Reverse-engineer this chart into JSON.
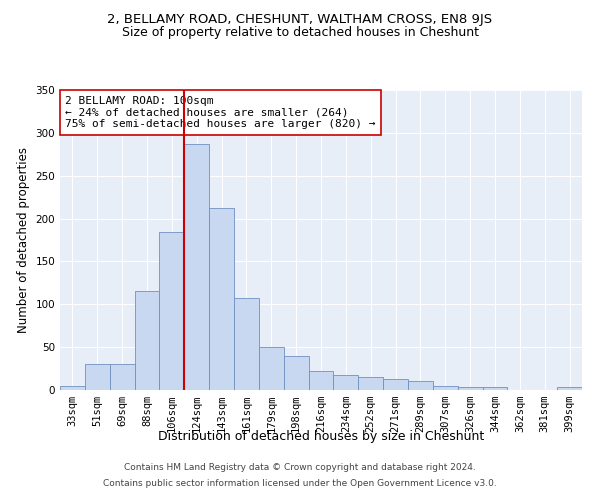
{
  "title": "2, BELLAMY ROAD, CHESHUNT, WALTHAM CROSS, EN8 9JS",
  "subtitle": "Size of property relative to detached houses in Cheshunt",
  "xlabel": "Distribution of detached houses by size in Cheshunt",
  "ylabel": "Number of detached properties",
  "categories": [
    "33sqm",
    "51sqm",
    "69sqm",
    "88sqm",
    "106sqm",
    "124sqm",
    "143sqm",
    "161sqm",
    "179sqm",
    "198sqm",
    "216sqm",
    "234sqm",
    "252sqm",
    "271sqm",
    "289sqm",
    "307sqm",
    "326sqm",
    "344sqm",
    "362sqm",
    "381sqm",
    "399sqm"
  ],
  "values": [
    5,
    30,
    30,
    115,
    184,
    287,
    212,
    107,
    50,
    40,
    22,
    18,
    15,
    13,
    10,
    5,
    3,
    3,
    0,
    0,
    3
  ],
  "bar_color": "#c8d8f0",
  "bar_edge_color": "#7090c0",
  "vline_x_index": 4,
  "vline_color": "#cc0000",
  "annotation_text": "2 BELLAMY ROAD: 100sqm\n← 24% of detached houses are smaller (264)\n75% of semi-detached houses are larger (820) →",
  "annotation_box_color": "#ffffff",
  "annotation_box_edge_color": "#cc0000",
  "ylim": [
    0,
    350
  ],
  "yticks": [
    0,
    50,
    100,
    150,
    200,
    250,
    300,
    350
  ],
  "bg_color": "#e8eef8",
  "grid_color": "#ffffff",
  "footer1": "Contains HM Land Registry data © Crown copyright and database right 2024.",
  "footer2": "Contains public sector information licensed under the Open Government Licence v3.0.",
  "title_fontsize": 9.5,
  "subtitle_fontsize": 9,
  "xlabel_fontsize": 9,
  "ylabel_fontsize": 8.5,
  "tick_fontsize": 7.5,
  "annotation_fontsize": 8,
  "footer_fontsize": 6.5
}
